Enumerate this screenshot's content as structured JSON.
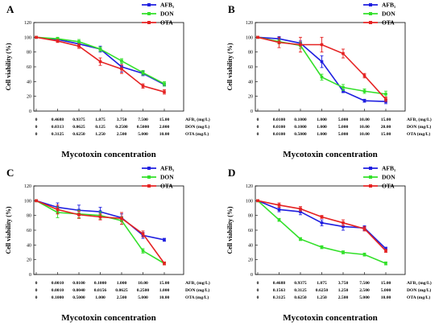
{
  "colors": {
    "AFB1": "#1f1fe0",
    "DON": "#33e02a",
    "OTA": "#e52222"
  },
  "chart_data": [
    {
      "panel": "A",
      "type": "line",
      "ylabel": "Cell viability (%)",
      "xlabel": "Mycotoxin concentration",
      "ylim": [
        0,
        120
      ],
      "yticks": [
        0,
        20,
        40,
        60,
        80,
        100,
        120
      ],
      "concentration_rows": [
        {
          "name": "AFB₁ (mg/L)",
          "values": [
            "0",
            "0.4688",
            "0.9375",
            "1.875",
            "3.750",
            "7.500",
            "15.00"
          ]
        },
        {
          "name": "DON (mg/L)",
          "values": [
            "0",
            "0.0313",
            "0.0625",
            "0.125",
            "0.2500",
            "0.5000",
            "2.000"
          ]
        },
        {
          "name": "OTA (mg/L)",
          "values": [
            "0",
            "0.3125",
            "0.6250",
            "1.250",
            "2.500",
            "5.000",
            "10.00"
          ]
        }
      ],
      "series": [
        {
          "name": "AFB₁",
          "values": [
            100,
            97,
            91,
            84,
            60,
            51,
            36
          ],
          "errors": [
            1,
            2,
            3,
            4,
            7,
            3,
            2
          ]
        },
        {
          "name": "DON",
          "values": [
            100,
            98,
            94,
            84,
            68,
            52,
            37
          ],
          "errors": [
            1,
            2,
            3,
            3,
            3,
            3,
            3
          ]
        },
        {
          "name": "OTA",
          "values": [
            100,
            95,
            88,
            67,
            57,
            34,
            26
          ],
          "errors": [
            1,
            2,
            3,
            5,
            6,
            3,
            3
          ]
        }
      ],
      "legend": [
        "AFB₁",
        "DON",
        "OTA"
      ]
    },
    {
      "panel": "B",
      "type": "line",
      "ylabel": "Cell viability (%)",
      "xlabel": "Mycotoxin concentration",
      "ylim": [
        0,
        120
      ],
      "yticks": [
        0,
        20,
        40,
        60,
        80,
        100,
        120
      ],
      "concentration_rows": [
        {
          "name": "AFB₁ (mg/L)",
          "values": [
            "0",
            "0.0100",
            "0.1000",
            "1.000",
            "5.000",
            "10.00",
            "15.00"
          ]
        },
        {
          "name": "DON (mg/L)",
          "values": [
            "0",
            "0.0100",
            "0.1000",
            "1.000",
            "5.000",
            "10.00",
            "20.00"
          ]
        },
        {
          "name": "OTA (mg/L)",
          "values": [
            "0",
            "0.0100",
            "0.5000",
            "1.000",
            "5.000",
            "10.00",
            "15.00"
          ]
        }
      ],
      "series": [
        {
          "name": "AFB₁",
          "values": [
            100,
            98,
            92,
            67,
            27,
            14,
            13
          ],
          "errors": [
            1,
            3,
            3,
            8,
            2,
            2,
            3
          ]
        },
        {
          "name": "DON",
          "values": [
            100,
            94,
            89,
            46,
            32,
            27,
            23
          ],
          "errors": [
            1,
            3,
            4,
            4,
            4,
            3,
            4
          ]
        },
        {
          "name": "OTA",
          "values": [
            100,
            93,
            90,
            90,
            78,
            48,
            16
          ],
          "errors": [
            1,
            7,
            10,
            10,
            6,
            3,
            3
          ]
        }
      ],
      "legend": [
        "AFB₁",
        "DON",
        "OTA"
      ]
    },
    {
      "panel": "C",
      "type": "line",
      "ylabel": "Cell viability (%)",
      "xlabel": "Mycotoxin concentration",
      "ylim": [
        0,
        120
      ],
      "yticks": [
        0,
        20,
        40,
        60,
        80,
        100,
        120
      ],
      "concentration_rows": [
        {
          "name": "AFB₁ (mg/L)",
          "values": [
            "0",
            "0.0010",
            "0.0100",
            "0.1000",
            "1.000",
            "10.00",
            "15.00"
          ]
        },
        {
          "name": "DON (mg/L)",
          "values": [
            "0",
            "0.0010",
            "0.0040",
            "0.0156",
            "0.0625",
            "0.2500",
            "1.000"
          ]
        },
        {
          "name": "OTA (mg/L)",
          "values": [
            "0",
            "0.1000",
            "0.5000",
            "1.000",
            "2.500",
            "5.000",
            "10.00"
          ]
        }
      ],
      "series": [
        {
          "name": "AFB₁",
          "values": [
            100,
            91,
            87,
            85,
            77,
            53,
            47
          ],
          "errors": [
            1,
            6,
            7,
            6,
            5,
            4,
            2
          ]
        },
        {
          "name": "DON",
          "values": [
            100,
            84,
            82,
            80,
            73,
            32,
            15
          ],
          "errors": [
            1,
            7,
            5,
            5,
            5,
            3,
            2
          ]
        },
        {
          "name": "OTA",
          "values": [
            100,
            88,
            81,
            78,
            76,
            55,
            15
          ],
          "errors": [
            1,
            6,
            5,
            4,
            8,
            4,
            2
          ]
        }
      ],
      "legend": [
        "AFB₁",
        "DON",
        "OTA"
      ]
    },
    {
      "panel": "D",
      "type": "line",
      "ylabel": "Cell viability (%)",
      "xlabel": "Mycotoxin concentration",
      "ylim": [
        0,
        120
      ],
      "yticks": [
        0,
        20,
        40,
        60,
        80,
        100,
        120
      ],
      "concentration_rows": [
        {
          "name": "AFB₁ (mg/L)",
          "values": [
            "0",
            "0.4688",
            "0.9375",
            "1.875",
            "3.750",
            "7.500",
            "15.00"
          ]
        },
        {
          "name": "DON (mg/L)",
          "values": [
            "0",
            "0.1563",
            "0.3125",
            "0.6250",
            "1.250",
            "2.500",
            "5.000"
          ]
        },
        {
          "name": "OTA (mg/L)",
          "values": [
            "0",
            "0.3125",
            "0.6250",
            "1.250",
            "2.500",
            "5.000",
            "10.00"
          ]
        }
      ],
      "series": [
        {
          "name": "AFB₁",
          "values": [
            100,
            88,
            85,
            70,
            65,
            63,
            35
          ],
          "errors": [
            1,
            3,
            4,
            4,
            5,
            3,
            2
          ]
        },
        {
          "name": "DON",
          "values": [
            100,
            74,
            48,
            37,
            30,
            27,
            15
          ],
          "errors": [
            1,
            2,
            2,
            2,
            2,
            2,
            2
          ]
        },
        {
          "name": "OTA",
          "values": [
            100,
            94,
            89,
            78,
            70,
            62,
            32
          ],
          "errors": [
            1,
            3,
            3,
            2,
            4,
            3,
            2
          ]
        }
      ],
      "legend": [
        "AFB₁",
        "DON",
        "OTA"
      ]
    }
  ]
}
